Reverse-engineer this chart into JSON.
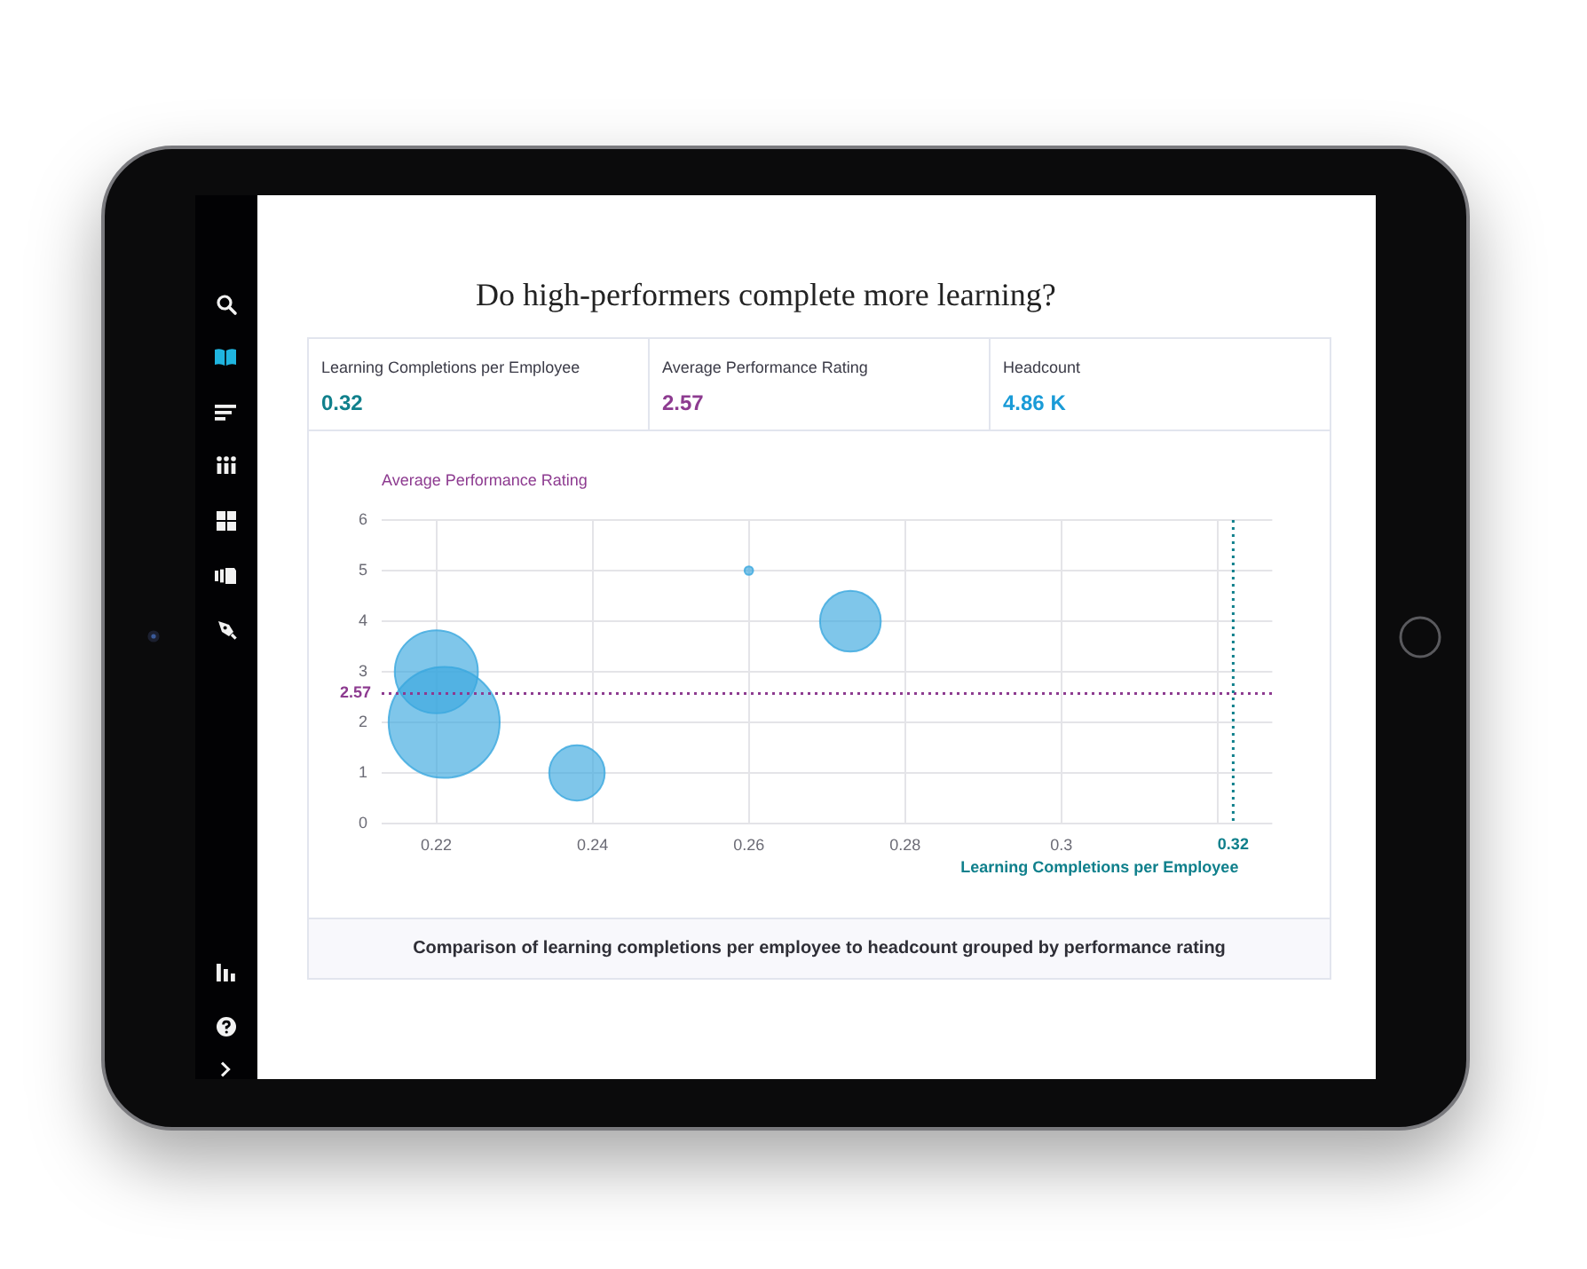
{
  "chart_data": [
    {
      "type": "other",
      "title": "Do high-performers complete more learning?",
      "annotations": [
        "Learning Completions per Employee",
        "0.32",
        "Average Performance Rating",
        "2.57",
        "Headcount",
        "4.86 K"
      ]
    },
    {
      "type": "bubble",
      "x": [
        0.22,
        0.221,
        0.238,
        0.26,
        0.273
      ],
      "values": [
        3,
        2,
        1,
        5,
        4
      ],
      "sizes": [
        0.56,
        1,
        0.25,
        0.006,
        0.3
      ],
      "color": "#3aa8df",
      "xlabel": "Learning Completions per Employee",
      "ylabel": "Average Performance Rating",
      "xlim": [
        0.213,
        0.327
      ],
      "ylim": [
        0,
        6
      ],
      "xticks": [
        0.22,
        0.24,
        0.26,
        0.28,
        0.3,
        {
          "value": 0.32,
          "label": null
        }
      ],
      "yticks": [
        0,
        1,
        2,
        3,
        4,
        5,
        6
      ],
      "grid": true,
      "ref_lines": [
        {
          "axis": "y",
          "value": 2.57,
          "label": "2.57",
          "color": "#8d3b90",
          "line_style": "dotted"
        },
        {
          "axis": "x",
          "value": 0.322,
          "label": "0.32",
          "color": "#10808c",
          "line_style": "dotted"
        }
      ],
      "annotations": [
        "Comparison of learning completions per employee to headcount grouped by performance rating"
      ]
    }
  ]
}
